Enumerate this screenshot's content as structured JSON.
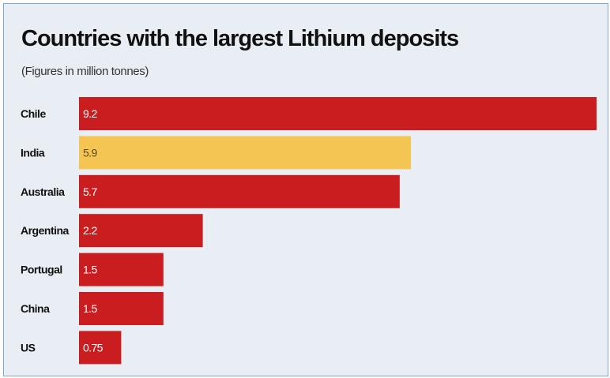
{
  "chart_data": {
    "type": "bar",
    "orientation": "horizontal",
    "title": "Countries with the largest Lithium deposits",
    "subtitle": "(Figures in million tonnes)",
    "categories": [
      "Chile",
      "India",
      "Australia",
      "Argentina",
      "Portugal",
      "China",
      "US"
    ],
    "values": [
      9.2,
      5.9,
      5.7,
      2.2,
      1.5,
      1.5,
      0.75
    ],
    "value_labels": [
      "9.2",
      "5.9",
      "5.7",
      "2.2",
      "1.5",
      "1.5",
      "0.75"
    ],
    "highlight_category": "India",
    "colors": {
      "default_bar": "#c91d1f",
      "highlight_bar": "#f5c553",
      "default_label": "#ffffff",
      "highlight_label": "#5b4a1f",
      "background": "#e9eef4",
      "border": "#7fa7cf"
    },
    "grid": false,
    "legend": "none"
  }
}
